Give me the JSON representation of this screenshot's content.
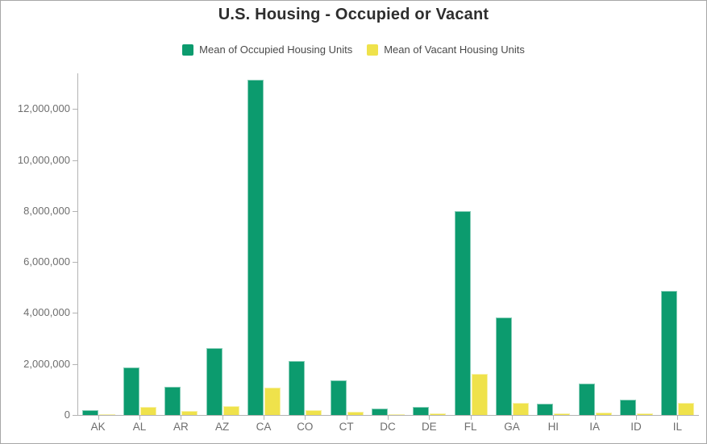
{
  "title": "U.S. Housing - Occupied or Vacant",
  "legend": [
    {
      "label": "Mean of Occupied Housing Units",
      "color": "#0c9b6e"
    },
    {
      "label": "Mean of Vacant Housing Units",
      "color": "#efe24b"
    }
  ],
  "colors": {
    "occupied": "#0c9b6e",
    "vacant": "#efe24b",
    "axis": "#b3b3b3",
    "tick_text": "#6e6e6e",
    "title_text": "#2e2e2e",
    "legend_text": "#4a4a4a",
    "frame_border": "#a7a7a7"
  },
  "chart_data": {
    "type": "bar",
    "title": "U.S. Housing - Occupied or Vacant",
    "categories": [
      "AK",
      "AL",
      "AR",
      "AZ",
      "CA",
      "CO",
      "CT",
      "DC",
      "DE",
      "FL",
      "GA",
      "HI",
      "IA",
      "ID",
      "IL"
    ],
    "series": [
      {
        "name": "Mean of Occupied Housing Units",
        "color": "#0c9b6e",
        "values": [
          200000,
          1860000,
          1120000,
          2620000,
          13150000,
          2110000,
          1360000,
          250000,
          320000,
          7980000,
          3830000,
          430000,
          1230000,
          595000,
          4880000
        ]
      },
      {
        "name": "Mean of Vacant Housing Units",
        "color": "#efe24b",
        "values": [
          35000,
          330000,
          170000,
          360000,
          1070000,
          200000,
          130000,
          40000,
          55000,
          1600000,
          460000,
          50000,
          110000,
          60000,
          460000
        ]
      }
    ],
    "xlabel": "",
    "ylabel": "",
    "ylim": [
      0,
      13400000
    ],
    "y_tick_step": 2000000,
    "y_tick_labels": [
      "0",
      "2,000,000",
      "4,000,000",
      "6,000,000",
      "8,000,000",
      "10,000,000",
      "12,000,000"
    ],
    "grid": false,
    "legend_position": "top"
  }
}
